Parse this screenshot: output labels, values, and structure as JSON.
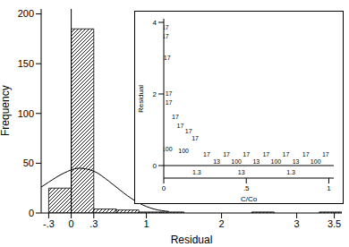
{
  "chart_data": [
    {
      "type": "histogram",
      "x_label": "Residual",
      "y_label": "Frequency",
      "bins": [
        -0.3,
        0,
        0.3,
        0.6,
        0.9,
        1.2,
        1.5,
        1.8,
        2.1,
        2.4,
        2.7,
        3.0,
        3.3,
        3.6
      ],
      "counts": [
        25,
        185,
        4,
        3,
        1,
        1,
        0,
        0,
        0,
        1,
        0,
        0,
        1
      ],
      "curve": {
        "x": [
          -0.4,
          -0.3,
          -0.1,
          0.1,
          0.3,
          0.5,
          0.7,
          0.9,
          1.1,
          1.3
        ],
        "values": [
          26,
          31,
          40,
          45,
          42,
          32,
          20,
          10,
          4,
          1.5
        ]
      },
      "reference_x": 0,
      "color": "#000000",
      "xlim": [
        -0.4,
        3.6
      ],
      "ylim": [
        0,
        205
      ],
      "xticks": [
        {
          "value": -0.3,
          "label": "-.3"
        },
        0,
        {
          "value": 0.3,
          "label": ".3"
        },
        1,
        2,
        3,
        3.5
      ],
      "yticks": [
        0,
        50,
        100,
        150,
        200
      ]
    },
    {
      "type": "scatter",
      "x_label": "C/Co",
      "y_label": "Residual",
      "x": [
        0.01,
        0.01,
        0.02,
        0.03,
        0.03,
        0.07,
        0.1,
        0.15,
        0.19,
        0.02,
        0.12,
        0.26,
        0.32,
        0.38,
        0.44,
        0.5,
        0.56,
        0.62,
        0.68,
        0.74,
        0.8,
        0.86,
        0.92,
        0.98,
        0.2,
        0.47,
        0.77
      ],
      "values": [
        3.85,
        3.6,
        3.0,
        2.0,
        1.75,
        1.35,
        1.1,
        0.95,
        0.75,
        0.45,
        0.4,
        0.3,
        0.1,
        0.3,
        0.1,
        0.3,
        0.1,
        0.3,
        0.1,
        0.3,
        0.1,
        0.3,
        0.1,
        0.3,
        -0.2,
        -0.2,
        -0.2
      ],
      "point_labels": [
        "17",
        "17",
        "17",
        "17",
        "17",
        "17",
        "17",
        "17",
        "17",
        "100",
        "100",
        "17",
        "13",
        "17",
        "100",
        "17",
        "13",
        "17",
        "100",
        "17",
        "13",
        "17",
        "100",
        "17",
        "1.3",
        "13",
        "1.3"
      ],
      "reference_y": 0,
      "color": "#000000",
      "xlim": [
        0,
        1.03
      ],
      "ylim": [
        -0.35,
        4.1
      ],
      "xticks": [
        0,
        {
          "value": 0.5,
          "label": ".5"
        },
        1
      ],
      "yticks": [
        0,
        2,
        4
      ]
    }
  ]
}
